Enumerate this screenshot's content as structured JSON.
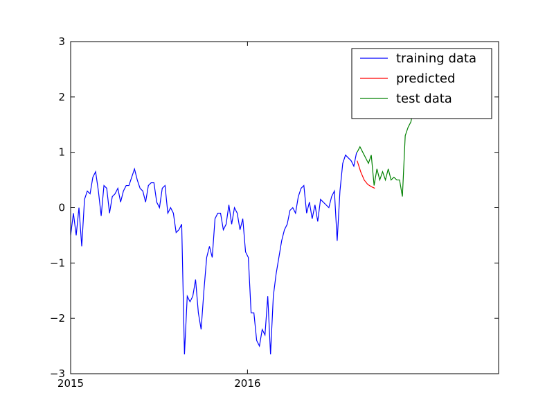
{
  "chart_data": {
    "type": "line",
    "xlim": [
      2015,
      2017.42
    ],
    "xticks": [
      2015,
      2016
    ],
    "ylim": [
      -3,
      3
    ],
    "yticks": [
      {
        "value": -3,
        "label": "−3"
      },
      {
        "value": -2,
        "label": "−2"
      },
      {
        "value": -1,
        "label": "−1"
      },
      0,
      1,
      2,
      3
    ],
    "legend": "upper right",
    "series": [
      {
        "name": "training data",
        "color": "#0000ff",
        "x": [
          2015,
          2015.0157,
          2015.0314,
          2015.0471,
          2015.0628,
          2015.0785,
          2015.0942,
          2015.1099,
          2015.1256,
          2015.1413,
          2015.157,
          2015.1727,
          2015.1884,
          2015.2041,
          2015.2198,
          2015.2355,
          2015.2512,
          2015.2669,
          2015.2826,
          2015.2983,
          2015.314,
          2015.3297,
          2015.3454,
          2015.3611,
          2015.3768,
          2015.3925,
          2015.4082,
          2015.4239,
          2015.4396,
          2015.4553,
          2015.471,
          2015.4867,
          2015.5024,
          2015.5181,
          2015.5338,
          2015.5495,
          2015.5652,
          2015.5809,
          2015.5966,
          2015.6123,
          2015.628,
          2015.6437,
          2015.6594,
          2015.6751,
          2015.6908,
          2015.7065,
          2015.7222,
          2015.7379,
          2015.7536,
          2015.7693,
          2015.785,
          2015.8007,
          2015.8164,
          2015.8321,
          2015.8478,
          2015.8635,
          2015.8792,
          2015.8949,
          2015.9106,
          2015.9263,
          2015.942,
          2015.9577,
          2015.9734,
          2015.9891,
          2016.0048,
          2016.0205,
          2016.0362,
          2016.0519,
          2016.0676,
          2016.0833,
          2016.099,
          2016.1147,
          2016.1304,
          2016.1461,
          2016.1618,
          2016.1775,
          2016.1932,
          2016.2089,
          2016.2246,
          2016.2403,
          2016.256,
          2016.2717,
          2016.2874,
          2016.3031,
          2016.3188,
          2016.3345,
          2016.3502,
          2016.3659,
          2016.3816,
          2016.3973,
          2016.413,
          2016.4287,
          2016.4444,
          2016.4601,
          2016.4758,
          2016.4915,
          2016.5072,
          2016.5229,
          2016.5386,
          2016.5543,
          2016.57,
          2016.5857,
          2016.6014,
          2016.6171
        ],
        "values": [
          -0.5,
          -0.1,
          -0.5,
          0.0,
          -0.7,
          0.15,
          0.3,
          0.25,
          0.55,
          0.65,
          0.3,
          -0.15,
          0.4,
          0.35,
          -0.1,
          0.2,
          0.25,
          0.35,
          0.1,
          0.3,
          0.4,
          0.4,
          0.55,
          0.7,
          0.5,
          0.35,
          0.3,
          0.1,
          0.4,
          0.45,
          0.45,
          0.1,
          0.0,
          0.35,
          0.4,
          -0.1,
          0.0,
          -0.1,
          -0.45,
          -0.4,
          -0.3,
          -2.65,
          -1.6,
          -1.7,
          -1.6,
          -1.3,
          -1.9,
          -2.2,
          -1.5,
          -0.9,
          -0.7,
          -0.9,
          -0.2,
          -0.1,
          -0.1,
          -0.4,
          -0.3,
          0.05,
          -0.3,
          0.0,
          -0.1,
          -0.4,
          -0.2,
          -0.8,
          -0.9,
          -1.9,
          -1.9,
          -2.4,
          -2.5,
          -2.2,
          -2.3,
          -1.6,
          -2.65,
          -1.6,
          -1.2,
          -0.9,
          -0.6,
          -0.4,
          -0.3,
          -0.05,
          0.0,
          -0.1,
          0.2,
          0.35,
          0.4,
          -0.1,
          0.1,
          -0.2,
          0.05,
          -0.25,
          0.15,
          0.1,
          0.05,
          0.0,
          0.2,
          0.3,
          -0.6,
          0.3,
          0.8,
          0.95,
          0.9,
          0.85,
          0.75,
          1.0
        ]
      },
      {
        "name": "predicted",
        "color": "#ff0000",
        "x": [
          2016.62,
          2016.64,
          2016.66,
          2016.68,
          2016.7,
          2016.72
        ],
        "values": [
          0.85,
          0.65,
          0.5,
          0.42,
          0.38,
          0.35
        ]
      },
      {
        "name": "test data",
        "color": "#008000",
        "x": [
          2016.62,
          2016.636,
          2016.652,
          2016.668,
          2016.684,
          2016.7,
          2016.716,
          2016.732,
          2016.748,
          2016.764,
          2016.78,
          2016.796,
          2016.812,
          2016.828,
          2016.844,
          2016.86,
          2016.876,
          2016.892,
          2016.908,
          2016.924,
          2016.94,
          2016.956,
          2016.972,
          2016.988
        ],
        "values": [
          1.0,
          1.1,
          1.0,
          0.9,
          0.8,
          0.95,
          0.4,
          0.7,
          0.5,
          0.65,
          0.5,
          0.7,
          0.5,
          0.55,
          0.5,
          0.5,
          0.2,
          1.3,
          1.45,
          1.55,
          1.8,
          1.95,
          2.1,
          2.3
        ]
      }
    ]
  }
}
